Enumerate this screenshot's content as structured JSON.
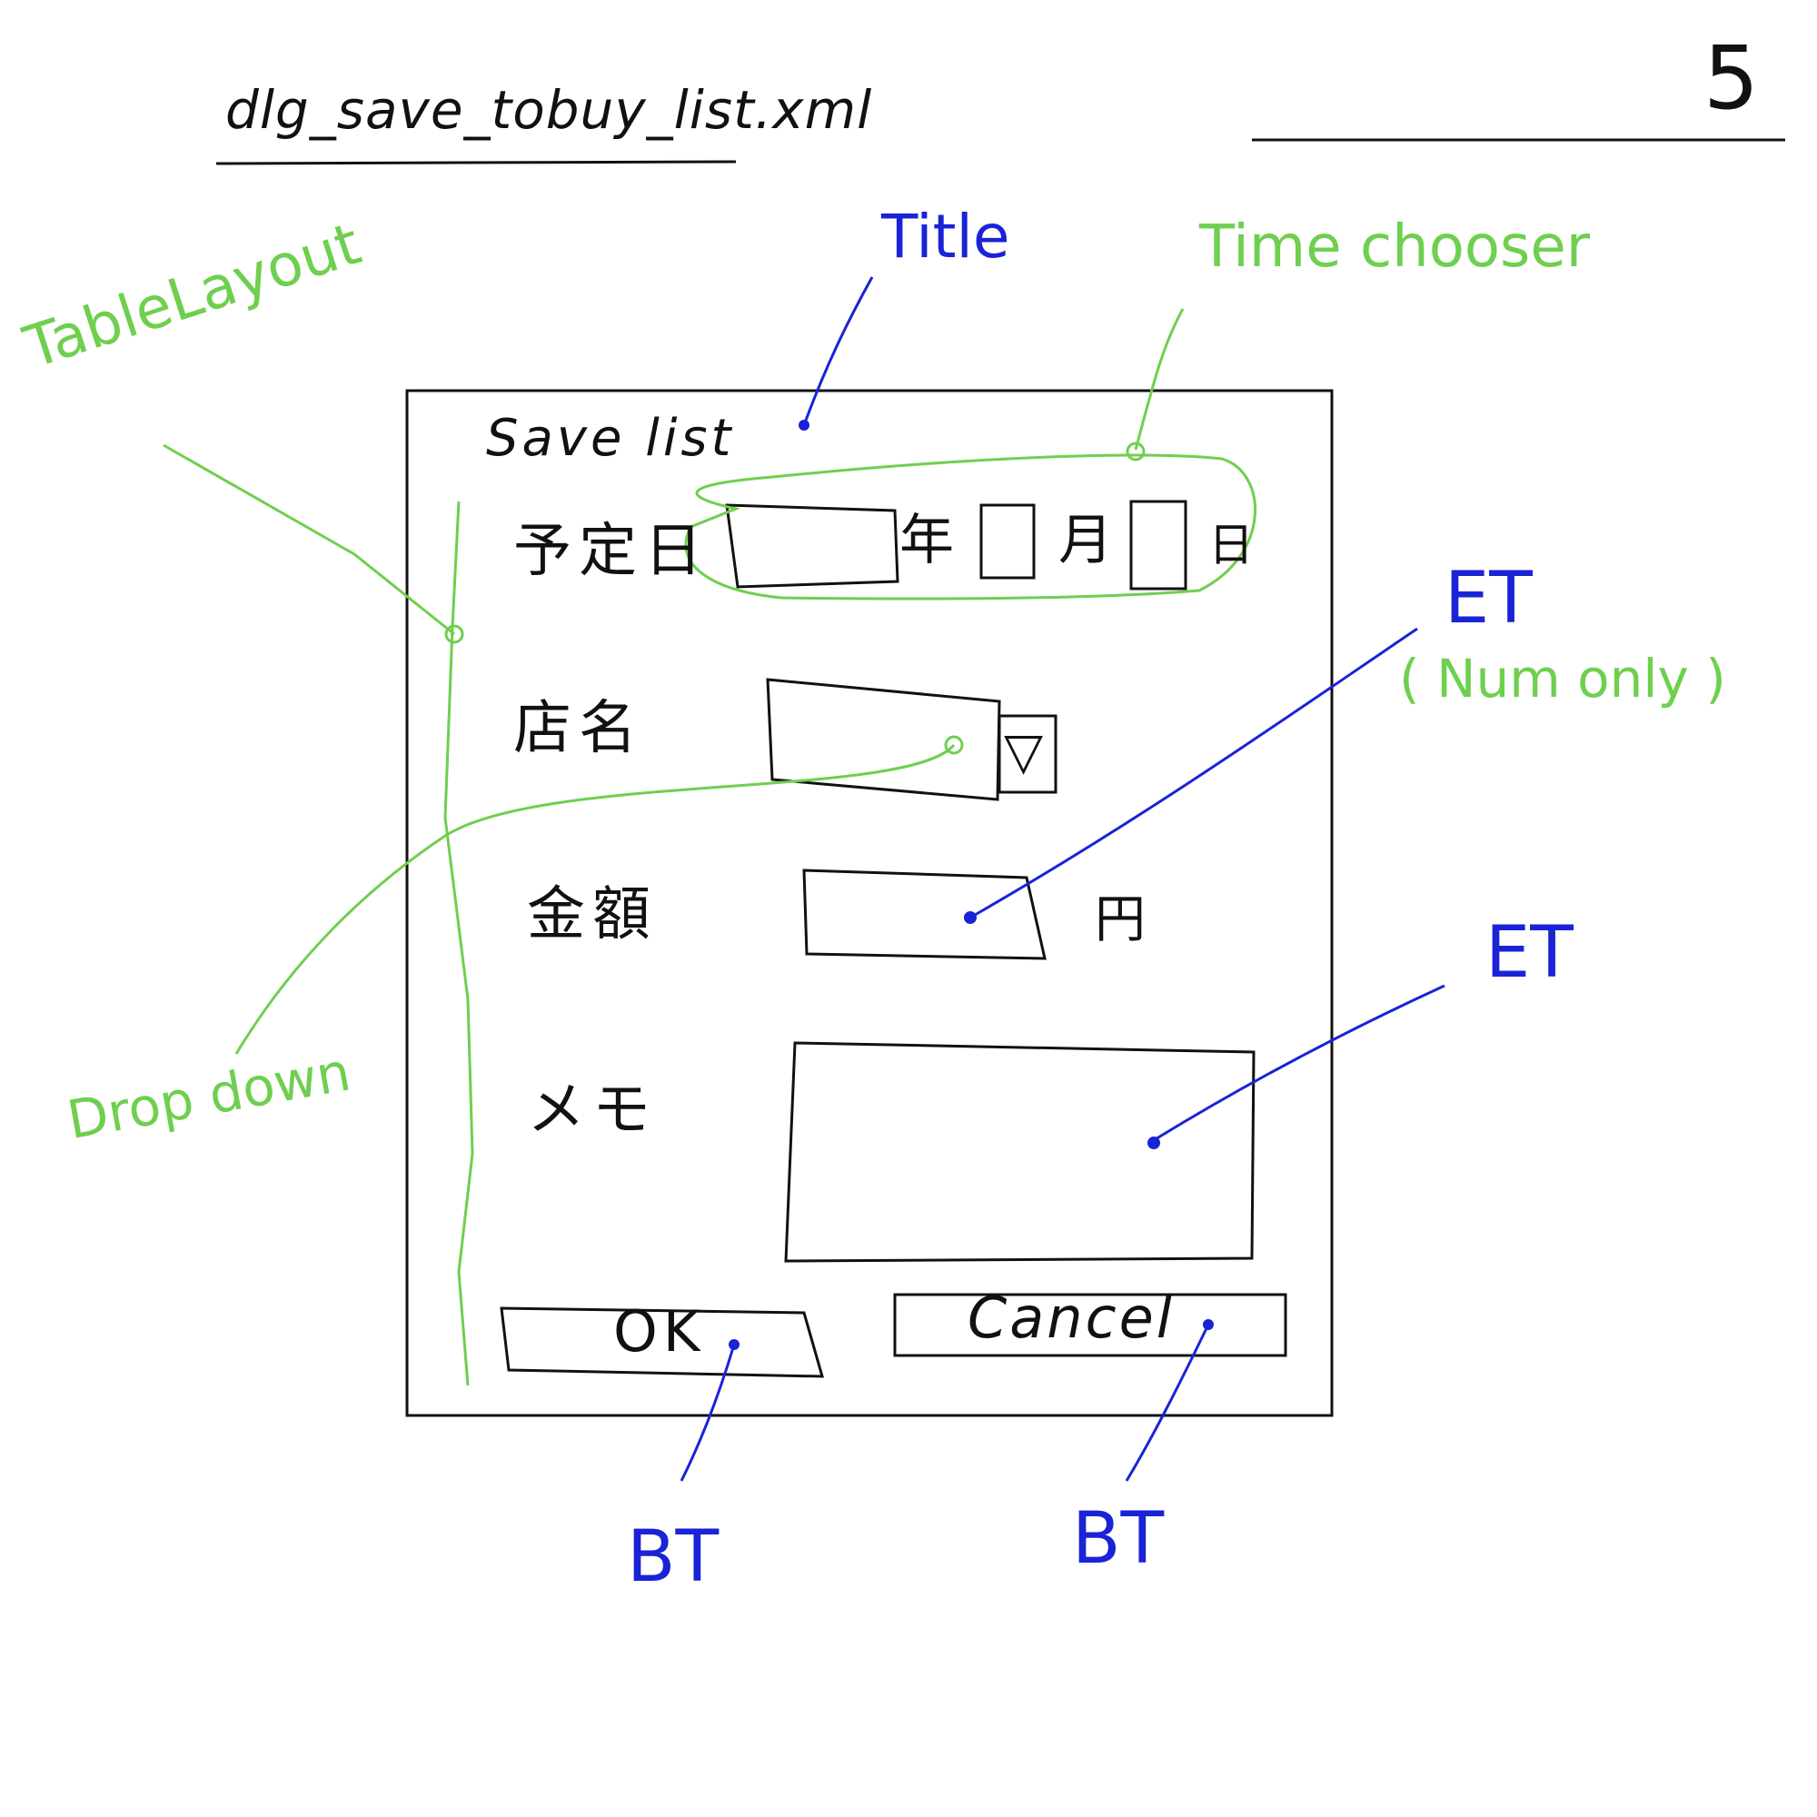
{
  "sketch": {
    "file_title": "dlg_save_tobuy_list.xml",
    "page_number": "5"
  },
  "annotations": {
    "title": "Title",
    "time_chooser": "Time chooser",
    "tablelayout": "TableLayout",
    "et_num": "ET",
    "num_only": "( Num only )",
    "et_memo": "ET",
    "dropdown": "Drop down",
    "bt_ok": "BT",
    "bt_cancel": "BT"
  },
  "dialog": {
    "title": "Save list",
    "rows": {
      "date_label": "予定日",
      "shop_label": "店名",
      "amount_label": "金額",
      "memo_label": "メモ"
    },
    "date_units": {
      "year": "年",
      "month": "月",
      "day": "日"
    },
    "amount_unit": "円",
    "dropdown_arrow": "▽",
    "ok_button": "OK",
    "cancel_button": "Cancel"
  },
  "colors": {
    "ink": "#111111",
    "annotation_blue": "#1a23d6",
    "annotation_green": "#6fcf4f"
  }
}
